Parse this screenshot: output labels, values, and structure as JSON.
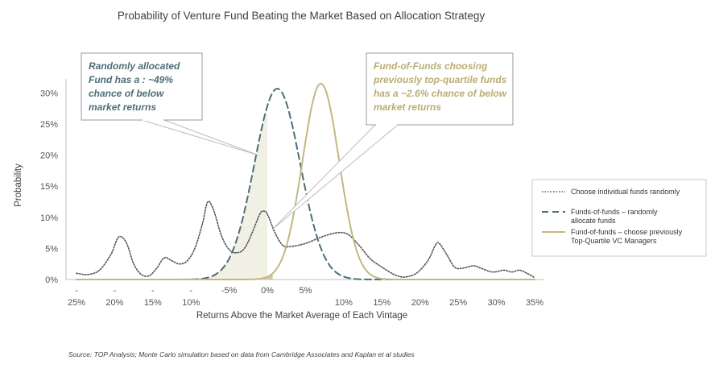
{
  "chart_data": {
    "type": "line",
    "title": "Probability of Venture Fund Beating the Market Based on Allocation Strategy",
    "xlabel": "Returns Above the Market Average of Each Vintage",
    "ylabel": "Probability",
    "xlim": [
      -25,
      35
    ],
    "ylim": [
      0,
      32
    ],
    "y_ticks": [
      {
        "value": 0,
        "label": "0%"
      },
      {
        "value": 5,
        "label": "5%"
      },
      {
        "value": 10,
        "label": "10%"
      },
      {
        "value": 15,
        "label": "15%"
      },
      {
        "value": 20,
        "label": "20%"
      },
      {
        "value": 25,
        "label": "25%"
      },
      {
        "value": 30,
        "label": "30%"
      }
    ],
    "x_ticks": [
      {
        "value": -25,
        "top": "-",
        "bottom": "25%"
      },
      {
        "value": -20,
        "top": "-",
        "bottom": "20%"
      },
      {
        "value": -15,
        "top": "-",
        "bottom": "15%"
      },
      {
        "value": -10,
        "top": "-",
        "bottom": "10%"
      },
      {
        "value": -5,
        "top": "-5%",
        "bottom": ""
      },
      {
        "value": 0,
        "top": "0%",
        "bottom": ""
      },
      {
        "value": 5,
        "top": "5%",
        "bottom": ""
      },
      {
        "value": 10,
        "top": "",
        "bottom": "10%"
      },
      {
        "value": 15,
        "top": "",
        "bottom": "15%"
      },
      {
        "value": 20,
        "top": "",
        "bottom": "20%"
      },
      {
        "value": 25,
        "top": "",
        "bottom": "25%"
      },
      {
        "value": 30,
        "top": "",
        "bottom": "30%"
      },
      {
        "value": 35,
        "top": "",
        "bottom": "35%"
      }
    ],
    "series": [
      {
        "name": "Choose individual funds randomly",
        "style": "dotted",
        "color": "#555555",
        "points": [
          [
            -25,
            1
          ],
          [
            -23.5,
            0.8
          ],
          [
            -22,
            1.5
          ],
          [
            -20.5,
            4
          ],
          [
            -19.5,
            6.8
          ],
          [
            -18.5,
            6
          ],
          [
            -17.5,
            2.5
          ],
          [
            -16.5,
            0.8
          ],
          [
            -15.5,
            0.6
          ],
          [
            -14.5,
            1.8
          ],
          [
            -13.5,
            3.5
          ],
          [
            -12.5,
            3
          ],
          [
            -11.5,
            2.5
          ],
          [
            -10.5,
            3
          ],
          [
            -9.5,
            5
          ],
          [
            -8.5,
            9
          ],
          [
            -7.8,
            12.5
          ],
          [
            -7,
            11
          ],
          [
            -6,
            7
          ],
          [
            -5,
            4.8
          ],
          [
            -4,
            4.3
          ],
          [
            -3,
            5
          ],
          [
            -2,
            7.5
          ],
          [
            -1,
            10.5
          ],
          [
            -0.5,
            11
          ],
          [
            0,
            10.5
          ],
          [
            1,
            7.5
          ],
          [
            2,
            5.5
          ],
          [
            3,
            5.3
          ],
          [
            5,
            5.8
          ],
          [
            7,
            6.8
          ],
          [
            9,
            7.5
          ],
          [
            10.5,
            7.3
          ],
          [
            12,
            5.5
          ],
          [
            13.5,
            3.3
          ],
          [
            15,
            2
          ],
          [
            16,
            1.2
          ],
          [
            17,
            0.6
          ],
          [
            18,
            0.4
          ],
          [
            19.5,
            1
          ],
          [
            21,
            3
          ],
          [
            22,
            5.5
          ],
          [
            22.5,
            5.8
          ],
          [
            23.5,
            4
          ],
          [
            24.5,
            2
          ],
          [
            25.5,
            1.8
          ],
          [
            27,
            2.2
          ],
          [
            28,
            1.8
          ],
          [
            29.5,
            1.2
          ],
          [
            31,
            1.5
          ],
          [
            32,
            1.2
          ],
          [
            33,
            1.5
          ],
          [
            34,
            1
          ],
          [
            35,
            0.3
          ]
        ]
      },
      {
        "name": "Funds-of-funds – randomly allocate funds",
        "style": "dashed",
        "color": "#4e6e78",
        "mean": 1.3,
        "sd": 3.0,
        "peak": 30.7
      },
      {
        "name": "Fund-of-funds – choose previously Top-Quartile VC Managers",
        "style": "solid",
        "color": "#c3b882",
        "mean": 7.0,
        "sd": 2.4,
        "peak": 31.5
      }
    ],
    "shaded_regions": [
      {
        "series": "Funds-of-funds – randomly allocate funds",
        "below_x": 0,
        "color": "#f1f0e4"
      },
      {
        "series": "Fund-of-funds – choose previously Top-Quartile VC Managers",
        "below_x": 0.7,
        "color": "#d2c9a2"
      }
    ],
    "legend_position": "right",
    "legend": [
      {
        "label_lines": [
          "Choose individual funds randomly"
        ],
        "style": "dotted",
        "color": "#555555"
      },
      {
        "label_lines": [
          "Funds-of-funds – randomly",
          "allocate funds"
        ],
        "style": "dashed",
        "color": "#4e6e78"
      },
      {
        "label_lines": [
          "Fund-of-funds – choose previously",
          "Top-Quartile VC Managers"
        ],
        "style": "solid",
        "color": "#c3b882"
      }
    ],
    "annotations": [
      {
        "lines": [
          "Randomly allocated",
          "Fund has a : ~49%",
          "chance of below",
          "market returns"
        ],
        "color": "#4e6e78",
        "pointer_x": -1.2,
        "pointer_y": 20
      },
      {
        "lines": [
          "Fund-of-Funds choosing",
          "previously top-quartile funds",
          "has a  ~2.6% chance of below",
          "market returns"
        ],
        "color": "#b9ad74",
        "pointer_x": 0.6,
        "pointer_y": 8
      }
    ],
    "source": "Source: TOP Analysis; Monte Carlo simulation based on data from Cambridge Associates and Kaplan et al studies"
  }
}
